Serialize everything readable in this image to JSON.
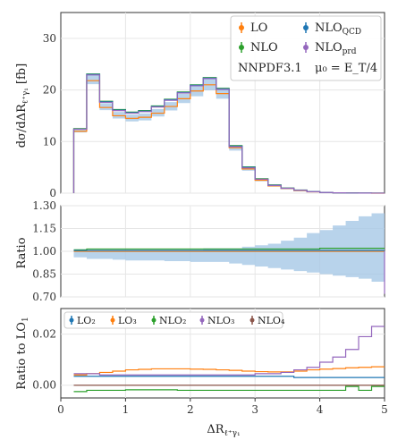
{
  "chart_data": [
    {
      "type": "line",
      "panel": "main",
      "ylabel_text": "dσ/dΔR",
      "ylabel_sub": "ℓ⁺γ₁",
      "ylabel_unit": "[fb]",
      "ylim": [
        0,
        35
      ],
      "yticks": [
        0,
        10,
        20,
        30
      ],
      "annotation_pdf": "NNPDF3.1",
      "annotation_scale": "μ₀ = E_T/4",
      "bin_edges": [
        0.2,
        0.4,
        0.6,
        0.8,
        1.0,
        1.2,
        1.4,
        1.6,
        1.8,
        2.0,
        2.2,
        2.4,
        2.6,
        2.8,
        3.0,
        3.2,
        3.4,
        3.6,
        3.8,
        4.0,
        4.2,
        4.4,
        4.6,
        4.8,
        5.0
      ],
      "series": [
        {
          "name": "LO",
          "color": "#ff7f0e",
          "values": [
            12.0,
            21.8,
            16.6,
            15.0,
            14.5,
            14.7,
            15.5,
            16.8,
            18.3,
            19.8,
            21.0,
            19.3,
            8.8,
            4.7,
            2.5,
            1.4,
            0.9,
            0.5,
            0.25,
            0.12,
            0.06,
            0.03,
            0.015,
            0.005
          ]
        },
        {
          "name": "NLO",
          "color": "#2ca02c",
          "values": [
            12.5,
            23.1,
            17.8,
            16.2,
            15.7,
            16.0,
            16.9,
            18.2,
            19.6,
            21.0,
            22.4,
            20.3,
            9.2,
            5.1,
            2.8,
            1.6,
            1.0,
            0.6,
            0.3,
            0.14,
            0.07,
            0.04,
            0.02,
            0.008
          ]
        },
        {
          "name": "NLO_QCD",
          "color": "#1f77b4",
          "values": [
            12.4,
            23.0,
            17.7,
            16.1,
            15.6,
            15.9,
            16.8,
            18.1,
            19.5,
            20.9,
            22.3,
            20.2,
            9.1,
            5.0,
            2.7,
            1.55,
            0.95,
            0.58,
            0.29,
            0.13,
            0.065,
            0.035,
            0.018,
            0.007
          ]
        },
        {
          "name": "NLO_prd",
          "color": "#9467bd",
          "values": [
            12.4,
            22.9,
            17.6,
            16.0,
            15.5,
            15.8,
            16.7,
            18.0,
            19.4,
            20.8,
            22.2,
            20.1,
            9.0,
            4.9,
            2.7,
            1.5,
            0.95,
            0.57,
            0.28,
            0.13,
            0.06,
            0.03,
            0.017,
            0.007
          ]
        }
      ],
      "band_low_ratio": [
        0.96,
        0.95,
        0.95,
        0.945,
        0.94,
        0.94,
        0.94,
        0.935,
        0.935,
        0.93,
        0.93,
        0.93,
        0.92,
        0.91,
        0.9,
        0.89,
        0.88,
        0.87,
        0.86,
        0.85,
        0.84,
        0.83,
        0.82,
        0.8
      ],
      "band_high_ratio": [
        1.01,
        1.01,
        1.01,
        1.01,
        1.01,
        1.01,
        1.01,
        1.01,
        1.01,
        1.01,
        1.02,
        1.02,
        1.02,
        1.03,
        1.04,
        1.05,
        1.07,
        1.09,
        1.12,
        1.14,
        1.17,
        1.2,
        1.23,
        1.25
      ],
      "band_color": "#a6c8e6",
      "legend": "top-right"
    },
    {
      "type": "line",
      "panel": "ratio",
      "ylabel": "Ratio",
      "ylim": [
        0.7,
        1.3
      ],
      "yticks": [
        "0.70",
        "0.85",
        "1.00",
        "1.15",
        "1.30"
      ],
      "series": [
        {
          "name": "LO",
          "color": "#ff7f0e",
          "values": [
            1.0,
            1.0,
            1.0,
            1.0,
            1.0,
            1.0,
            1.0,
            1.0,
            1.0,
            1.0,
            1.0,
            1.0,
            1.0,
            1.0,
            1.0,
            1.0,
            1.0,
            1.0,
            1.0,
            1.0,
            1.0,
            1.0,
            1.0,
            1.0
          ]
        },
        {
          "name": "NLO",
          "color": "#2ca02c",
          "values": [
            1.01,
            1.015,
            1.015,
            1.015,
            1.015,
            1.015,
            1.015,
            1.015,
            1.015,
            1.015,
            1.015,
            1.015,
            1.015,
            1.015,
            1.015,
            1.015,
            1.015,
            1.015,
            1.015,
            1.02,
            1.02,
            1.02,
            1.02,
            1.02
          ]
        },
        {
          "name": "NLO_QCD",
          "color": "#1f77b4",
          "values": [
            1.005,
            1.005,
            1.005,
            1.005,
            1.005,
            1.005,
            1.005,
            1.005,
            1.005,
            1.005,
            1.005,
            1.005,
            1.005,
            1.005,
            1.005,
            1.005,
            1.005,
            1.005,
            1.005,
            1.005,
            1.005,
            1.005,
            1.005,
            1.005
          ]
        }
      ],
      "band_low": [
        0.96,
        0.95,
        0.95,
        0.945,
        0.94,
        0.94,
        0.94,
        0.935,
        0.935,
        0.93,
        0.93,
        0.93,
        0.92,
        0.91,
        0.9,
        0.89,
        0.88,
        0.87,
        0.86,
        0.85,
        0.84,
        0.83,
        0.82,
        0.8
      ],
      "band_high": [
        1.01,
        1.01,
        1.01,
        1.01,
        1.01,
        1.01,
        1.01,
        1.01,
        1.01,
        1.01,
        1.02,
        1.02,
        1.02,
        1.03,
        1.04,
        1.05,
        1.07,
        1.09,
        1.12,
        1.14,
        1.17,
        1.2,
        1.23,
        1.25
      ],
      "band_color": "#a6c8e6"
    },
    {
      "type": "line",
      "panel": "ratio_lo1",
      "ylabel": "Ratio to LO",
      "ylabel_sub": "1",
      "ylim": [
        -0.005,
        0.03
      ],
      "yticks": [
        "0.00",
        "0.02"
      ],
      "ytick_values": [
        0,
        0.02
      ],
      "xlabel": "ΔR",
      "xlabel_sub": "ℓ⁺γ₁",
      "xlim": [
        0,
        5
      ],
      "xticks": [
        0,
        1,
        2,
        3,
        4,
        5
      ],
      "legend": "top-left",
      "series": [
        {
          "name": "LO₂",
          "color": "#1f77b4",
          "values": [
            0.0035,
            0.0035,
            0.0035,
            0.0035,
            0.0035,
            0.0035,
            0.0035,
            0.0035,
            0.0035,
            0.0035,
            0.0035,
            0.0035,
            0.0035,
            0.0035,
            0.0035,
            0.0035,
            0.0035,
            0.003,
            0.003,
            0.003,
            0.003,
            0.003,
            0.003,
            0.003
          ]
        },
        {
          "name": "LO₃",
          "color": "#ff7f0e",
          "values": [
            0.004,
            0.0045,
            0.005,
            0.0055,
            0.006,
            0.0062,
            0.0064,
            0.0064,
            0.0064,
            0.0063,
            0.0062,
            0.006,
            0.0058,
            0.0055,
            0.0053,
            0.0052,
            0.0052,
            0.0055,
            0.006,
            0.0063,
            0.0065,
            0.0068,
            0.007,
            0.0072
          ]
        },
        {
          "name": "NLO₂",
          "color": "#2ca02c",
          "values": [
            -0.0025,
            -0.002,
            -0.002,
            -0.002,
            -0.0018,
            -0.0018,
            -0.0018,
            -0.0018,
            -0.002,
            -0.002,
            -0.002,
            -0.002,
            -0.002,
            -0.002,
            -0.002,
            -0.002,
            -0.002,
            -0.002,
            -0.002,
            -0.002,
            -0.002,
            -0.0005,
            -0.002,
            -0.0005
          ]
        },
        {
          "name": "NLO₃",
          "color": "#9467bd",
          "values": [
            0.0045,
            0.0045,
            0.004,
            0.004,
            0.004,
            0.004,
            0.004,
            0.004,
            0.004,
            0.004,
            0.004,
            0.004,
            0.004,
            0.004,
            0.0045,
            0.0045,
            0.005,
            0.006,
            0.007,
            0.009,
            0.011,
            0.014,
            0.019,
            0.023
          ]
        },
        {
          "name": "NLO₄",
          "color": "#8c564b",
          "values": [
            0.0,
            0.0,
            0.0,
            0.0,
            0.0,
            0.0,
            0.0,
            0.0,
            0.0,
            0.0,
            0.0,
            0.0,
            0.0,
            0.0,
            0.0,
            0.0,
            0.0,
            0.0,
            0.0,
            0.0,
            0.0,
            0.0,
            0.0,
            0.0
          ]
        }
      ],
      "bin_edges": [
        0.2,
        0.4,
        0.6,
        0.8,
        1.0,
        1.2,
        1.4,
        1.6,
        1.8,
        2.0,
        2.2,
        2.4,
        2.6,
        2.8,
        3.0,
        3.2,
        3.4,
        3.6,
        3.8,
        4.0,
        4.2,
        4.4,
        4.6,
        4.8,
        5.0
      ]
    }
  ]
}
